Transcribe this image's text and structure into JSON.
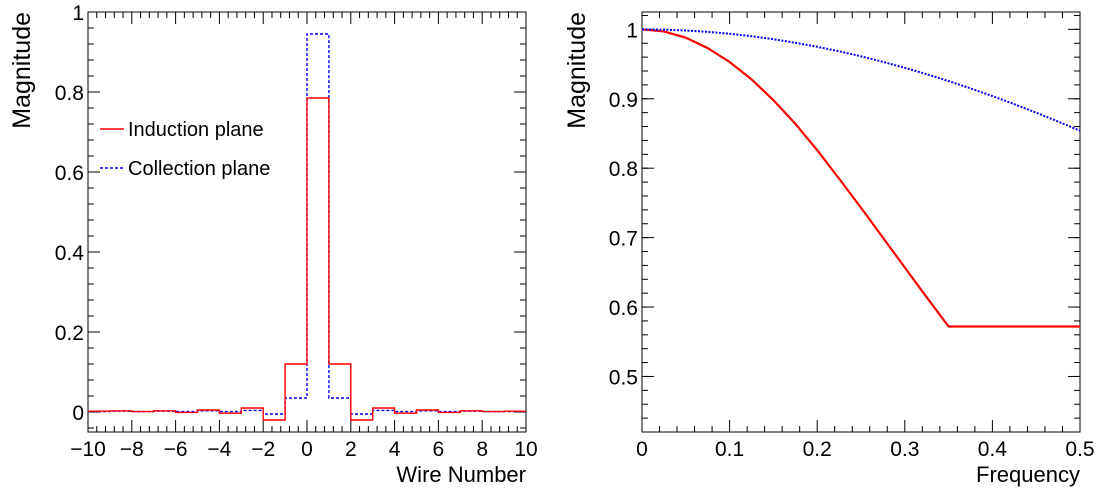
{
  "chart_data": [
    {
      "type": "line",
      "style": "histogram-step",
      "xlabel": "Wire Number",
      "ylabel": "Magnitude",
      "xlim": [
        -10,
        10
      ],
      "ylim": [
        -0.05,
        1.0
      ],
      "x_ticks": [
        -10,
        -8,
        -6,
        -4,
        -2,
        0,
        2,
        4,
        6,
        8,
        10
      ],
      "x_tick_labels": [
        "−10",
        "−8",
        "−6",
        "−4",
        "−2",
        "0",
        "2",
        "4",
        "6",
        "8",
        "10"
      ],
      "y_ticks": [
        0,
        0.2,
        0.4,
        0.6,
        0.8,
        1
      ],
      "y_tick_labels": [
        "0",
        "0.2",
        "0.4",
        "0.6",
        "0.8",
        "1"
      ],
      "bin_edges": [
        -10,
        -9,
        -8,
        -7,
        -6,
        -5,
        -4,
        -3,
        -2,
        -1,
        0,
        1,
        2,
        3,
        4,
        5,
        6,
        7,
        8,
        9,
        10
      ],
      "legend": {
        "position": "top-left"
      },
      "series": [
        {
          "name": "Induction plane",
          "color": "#ff0000",
          "dash": "solid",
          "values": [
            0.002,
            0.003,
            0.001,
            0.003,
            -0.001,
            0.005,
            -0.003,
            0.01,
            -0.02,
            0.12,
            0.785,
            0.12,
            -0.02,
            0.01,
            -0.003,
            0.005,
            -0.001,
            0.003,
            0.001,
            0.002
          ]
        },
        {
          "name": "Collection plane",
          "color": "#0000ff",
          "dash": "dotted",
          "values": [
            0.001,
            0.002,
            0.001,
            0.002,
            0.001,
            0.003,
            0.001,
            0.004,
            -0.005,
            0.035,
            0.945,
            0.035,
            -0.005,
            0.004,
            0.001,
            0.003,
            0.001,
            0.002,
            0.001,
            0.001
          ]
        }
      ]
    },
    {
      "type": "line",
      "xlabel": "Frequency",
      "ylabel": "Magnitude",
      "xlim": [
        0,
        0.5
      ],
      "ylim": [
        0.42,
        1.025
      ],
      "x_ticks": [
        0,
        0.1,
        0.2,
        0.3,
        0.4,
        0.5
      ],
      "x_tick_labels": [
        "0",
        "0.1",
        "0.2",
        "0.3",
        "0.4",
        "0.5"
      ],
      "y_ticks": [
        0.5,
        0.6,
        0.7,
        0.8,
        0.9,
        1
      ],
      "y_tick_labels": [
        "0.5",
        "0.6",
        "0.7",
        "0.8",
        "0.9",
        "1"
      ],
      "series": [
        {
          "color": "#ff0000",
          "dash": "solid",
          "x": [
            0,
            0.025,
            0.05,
            0.075,
            0.1,
            0.125,
            0.15,
            0.175,
            0.2,
            0.225,
            0.25,
            0.275,
            0.3,
            0.325,
            0.35,
            0.375,
            0.4,
            0.425,
            0.45,
            0.475,
            0.5
          ],
          "y": [
            1.0,
            0.997,
            0.988,
            0.973,
            0.953,
            0.928,
            0.898,
            0.864,
            0.826,
            0.785,
            0.743,
            0.7,
            0.657,
            0.614,
            0.572,
            0.572,
            0.572,
            0.572,
            0.572,
            0.572,
            0.572
          ]
        },
        {
          "color": "#0000ff",
          "dash": "dotted",
          "x": [
            0,
            0.025,
            0.05,
            0.075,
            0.1,
            0.125,
            0.15,
            0.175,
            0.2,
            0.225,
            0.25,
            0.275,
            0.3,
            0.325,
            0.35,
            0.375,
            0.4,
            0.425,
            0.45,
            0.475,
            0.5
          ],
          "y": [
            1.0,
            0.9996,
            0.9984,
            0.9964,
            0.9937,
            0.9901,
            0.9858,
            0.9807,
            0.9749,
            0.9684,
            0.9612,
            0.9532,
            0.9446,
            0.9354,
            0.9255,
            0.915,
            0.9039,
            0.8922,
            0.88,
            0.8672,
            0.854
          ]
        }
      ]
    }
  ]
}
